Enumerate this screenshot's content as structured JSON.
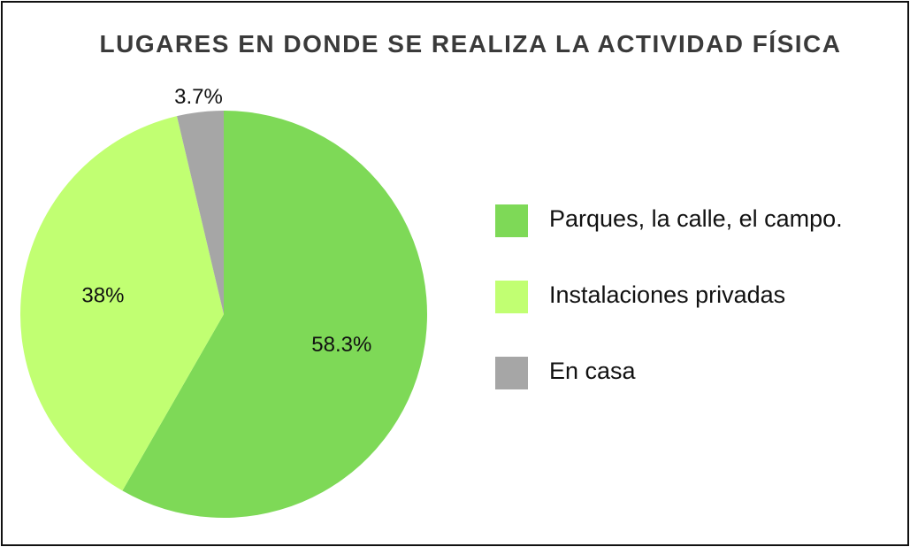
{
  "chart_data": {
    "type": "pie",
    "title": "LUGARES EN DONDE SE REALIZA LA ACTIVIDAD FÍSICA",
    "categories": [
      "Parques, la calle, el campo.",
      "Instalaciones privadas",
      "En casa"
    ],
    "values": [
      58.3,
      38,
      3.7
    ],
    "value_labels": [
      "58.3%",
      "38%",
      "3.7%"
    ],
    "colors": [
      "#7ed957",
      "#c1ff72",
      "#a6a6a6"
    ],
    "legend": "right"
  }
}
